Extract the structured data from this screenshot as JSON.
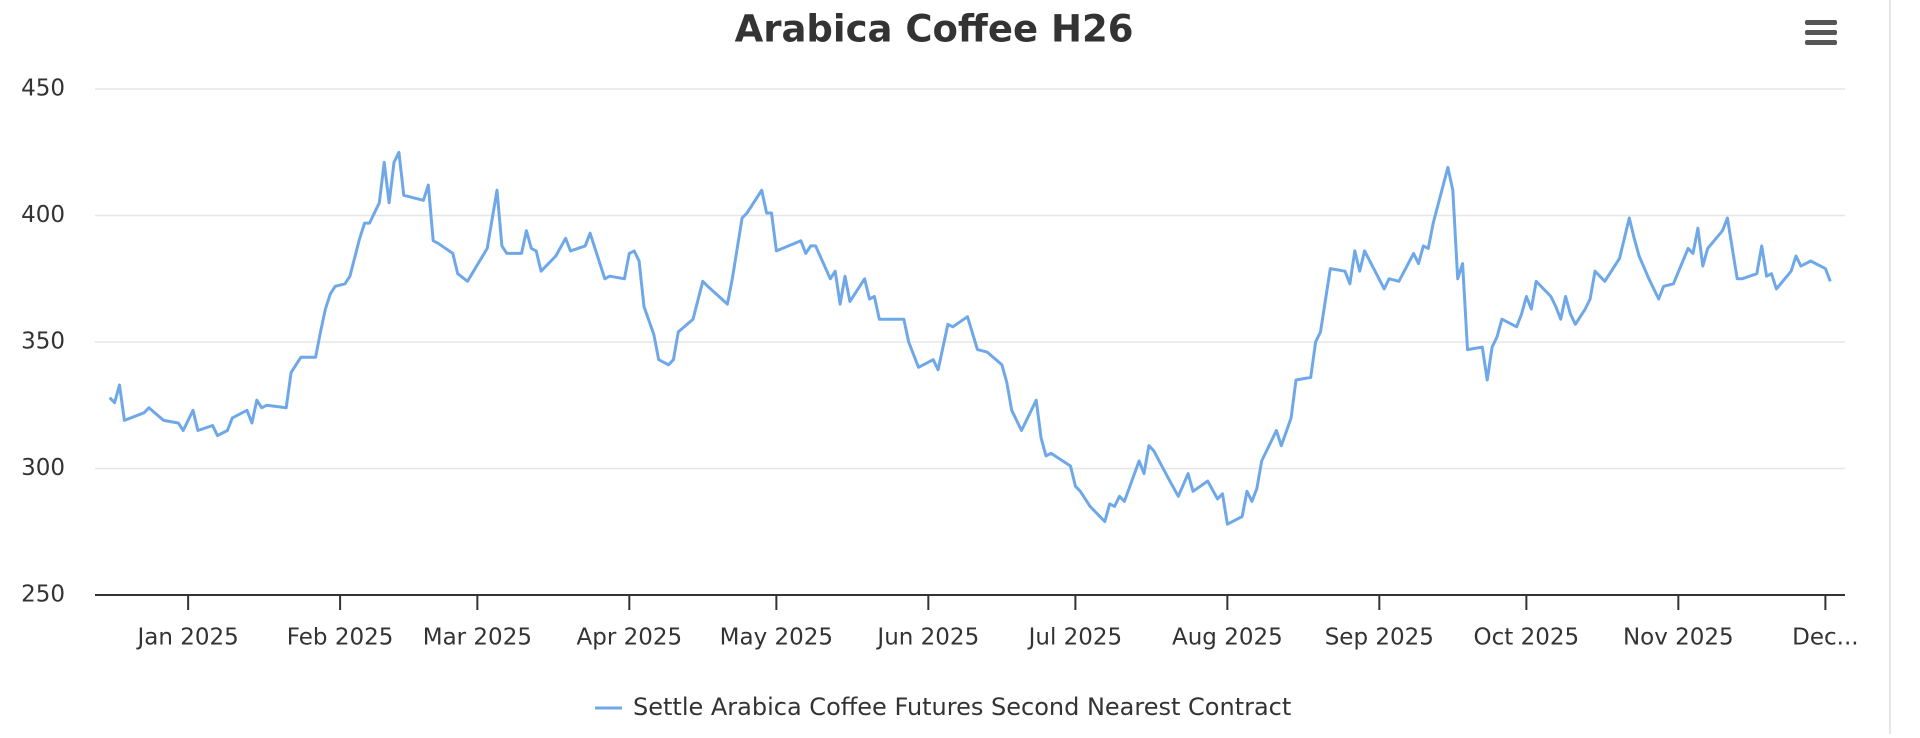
{
  "chart_data": {
    "type": "line",
    "title": "Arabica Coffee H26",
    "xlim": [
      "2024-12-13",
      "2025-12-05"
    ],
    "xticks": [
      {
        "value": "2025-01-01",
        "label": "Jan 2025"
      },
      {
        "value": "2025-02-01",
        "label": "Feb 2025"
      },
      {
        "value": "2025-03-01",
        "label": "Mar 2025"
      },
      {
        "value": "2025-04-01",
        "label": "Apr 2025"
      },
      {
        "value": "2025-05-01",
        "label": "May 2025"
      },
      {
        "value": "2025-06-01",
        "label": "Jun 2025"
      },
      {
        "value": "2025-07-01",
        "label": "Jul 2025"
      },
      {
        "value": "2025-08-01",
        "label": "Aug 2025"
      },
      {
        "value": "2025-09-01",
        "label": "Sep 2025"
      },
      {
        "value": "2025-10-01",
        "label": "Oct 2025"
      },
      {
        "value": "2025-11-01",
        "label": "Nov 2025"
      },
      {
        "value": "2025-12-01",
        "label": "Dec..."
      }
    ],
    "ylim": [
      250,
      450
    ],
    "yticks": [
      250,
      300,
      350,
      400,
      450
    ],
    "grid": true,
    "legend": "bottom",
    "x": [
      "2024-12-16",
      "2024-12-17",
      "2024-12-18",
      "2024-12-19",
      "2024-12-23",
      "2024-12-24",
      "2024-12-27",
      "2024-12-30",
      "2024-12-31",
      "2025-01-02",
      "2025-01-03",
      "2025-01-06",
      "2025-01-07",
      "2025-01-09",
      "2025-01-10",
      "2025-01-13",
      "2025-01-14",
      "2025-01-15",
      "2025-01-16",
      "2025-01-17",
      "2025-01-21",
      "2025-01-22",
      "2025-01-24",
      "2025-01-27",
      "2025-01-28",
      "2025-01-29",
      "2025-01-30",
      "2025-01-31",
      "2025-02-02",
      "2025-02-03",
      "2025-02-05",
      "2025-02-06",
      "2025-02-07",
      "2025-02-09",
      "2025-02-10",
      "2025-02-11",
      "2025-02-12",
      "2025-02-13",
      "2025-02-14",
      "2025-02-18",
      "2025-02-19",
      "2025-02-20",
      "2025-02-21",
      "2025-02-24",
      "2025-02-25",
      "2025-02-27",
      "2025-03-03",
      "2025-03-05",
      "2025-03-06",
      "2025-03-07",
      "2025-03-10",
      "2025-03-11",
      "2025-03-12",
      "2025-03-13",
      "2025-03-14",
      "2025-03-17",
      "2025-03-19",
      "2025-03-20",
      "2025-03-23",
      "2025-03-24",
      "2025-03-25",
      "2025-03-27",
      "2025-03-28",
      "2025-03-31",
      "2025-04-01",
      "2025-04-02",
      "2025-04-03",
      "2025-04-04",
      "2025-04-06",
      "2025-04-07",
      "2025-04-09",
      "2025-04-10",
      "2025-04-11",
      "2025-04-14",
      "2025-04-16",
      "2025-04-17",
      "2025-04-21",
      "2025-04-22",
      "2025-04-24",
      "2025-04-25",
      "2025-04-28",
      "2025-04-29",
      "2025-04-30",
      "2025-05-01",
      "2025-05-06",
      "2025-05-07",
      "2025-05-08",
      "2025-05-09",
      "2025-05-12",
      "2025-05-13",
      "2025-05-14",
      "2025-05-15",
      "2025-05-16",
      "2025-05-19",
      "2025-05-20",
      "2025-05-21",
      "2025-05-22",
      "2025-05-27",
      "2025-05-28",
      "2025-05-30",
      "2025-06-02",
      "2025-06-03",
      "2025-06-05",
      "2025-06-06",
      "2025-06-09",
      "2025-06-11",
      "2025-06-13",
      "2025-06-16",
      "2025-06-17",
      "2025-06-18",
      "2025-06-20",
      "2025-06-23",
      "2025-06-24",
      "2025-06-25",
      "2025-06-26",
      "2025-06-30",
      "2025-07-01",
      "2025-07-02",
      "2025-07-04",
      "2025-07-07",
      "2025-07-08",
      "2025-07-09",
      "2025-07-10",
      "2025-07-11",
      "2025-07-14",
      "2025-07-15",
      "2025-07-16",
      "2025-07-17",
      "2025-07-20",
      "2025-07-22",
      "2025-07-24",
      "2025-07-25",
      "2025-07-28",
      "2025-07-30",
      "2025-07-31",
      "2025-08-01",
      "2025-08-04",
      "2025-08-05",
      "2025-08-06",
      "2025-08-07",
      "2025-08-08",
      "2025-08-11",
      "2025-08-12",
      "2025-08-14",
      "2025-08-15",
      "2025-08-18",
      "2025-08-19",
      "2025-08-20",
      "2025-08-22",
      "2025-08-25",
      "2025-08-26",
      "2025-08-27",
      "2025-08-28",
      "2025-08-29",
      "2025-09-02",
      "2025-09-03",
      "2025-09-05",
      "2025-09-08",
      "2025-09-09",
      "2025-09-10",
      "2025-09-11",
      "2025-09-12",
      "2025-09-15",
      "2025-09-16",
      "2025-09-17",
      "2025-09-18",
      "2025-09-19",
      "2025-09-22",
      "2025-09-23",
      "2025-09-24",
      "2025-09-25",
      "2025-09-26",
      "2025-09-29",
      "2025-09-30",
      "2025-10-01",
      "2025-10-02",
      "2025-10-03",
      "2025-10-06",
      "2025-10-07",
      "2025-10-08",
      "2025-10-09",
      "2025-10-10",
      "2025-10-11",
      "2025-10-13",
      "2025-10-14",
      "2025-10-15",
      "2025-10-17",
      "2025-10-20",
      "2025-10-22",
      "2025-10-23",
      "2025-10-24",
      "2025-10-26",
      "2025-10-28",
      "2025-10-29",
      "2025-10-31",
      "2025-11-03",
      "2025-11-04",
      "2025-11-05",
      "2025-11-06",
      "2025-11-07",
      "2025-11-10",
      "2025-11-11",
      "2025-11-13",
      "2025-11-14",
      "2025-11-17",
      "2025-11-18",
      "2025-11-19",
      "2025-11-20",
      "2025-11-21",
      "2025-11-24",
      "2025-11-25",
      "2025-11-26",
      "2025-11-28",
      "2025-11-30",
      "2025-12-01",
      "2025-12-02"
    ],
    "series": [
      {
        "name": "Settle Arabica Coffee Futures Second Nearest Contract",
        "color": "#6fa8e8",
        "values": [
          328,
          326,
          333,
          319,
          322,
          324,
          319,
          318,
          315,
          323,
          315,
          317,
          313,
          315,
          320,
          323,
          318,
          327,
          324,
          325,
          324,
          338,
          344,
          344,
          354,
          363,
          369,
          372,
          373,
          376,
          391,
          397,
          397,
          405,
          421,
          405,
          421,
          425,
          408,
          406,
          412,
          390,
          389,
          385,
          377,
          374,
          387,
          410,
          388,
          385,
          385,
          394,
          387,
          386,
          378,
          384,
          391,
          386,
          388,
          393,
          387,
          375,
          376,
          375,
          385,
          386,
          382,
          364,
          353,
          343,
          341,
          343,
          354,
          359,
          374,
          372,
          365,
          375,
          399,
          401,
          410,
          401,
          401,
          386,
          390,
          385,
          388,
          388,
          375,
          378,
          365,
          376,
          366,
          375,
          367,
          368,
          359,
          359,
          350,
          340,
          343,
          339,
          357,
          356,
          360,
          347,
          346,
          341,
          334,
          323,
          315,
          327,
          312,
          305,
          306,
          301,
          293,
          291,
          285,
          279,
          286,
          285,
          289,
          287,
          303,
          298,
          309,
          307,
          296,
          289,
          298,
          291,
          295,
          288,
          290,
          278,
          281,
          291,
          287,
          292,
          303,
          315,
          309,
          320,
          335,
          336,
          350,
          354,
          379,
          378,
          373,
          386,
          378,
          386,
          371,
          375,
          374,
          385,
          381,
          388,
          387,
          397,
          419,
          410,
          375,
          381,
          347,
          348,
          335,
          348,
          352,
          359,
          356,
          361,
          368,
          363,
          374,
          368,
          364,
          359,
          368,
          361,
          357,
          363,
          367,
          378,
          374,
          383,
          399,
          391,
          384,
          375,
          367,
          372,
          373,
          387,
          385,
          395,
          380,
          387,
          394,
          399,
          375,
          375,
          377,
          388,
          376,
          377,
          371,
          378,
          384,
          380,
          382,
          380,
          379,
          374
        ]
      }
    ]
  }
}
